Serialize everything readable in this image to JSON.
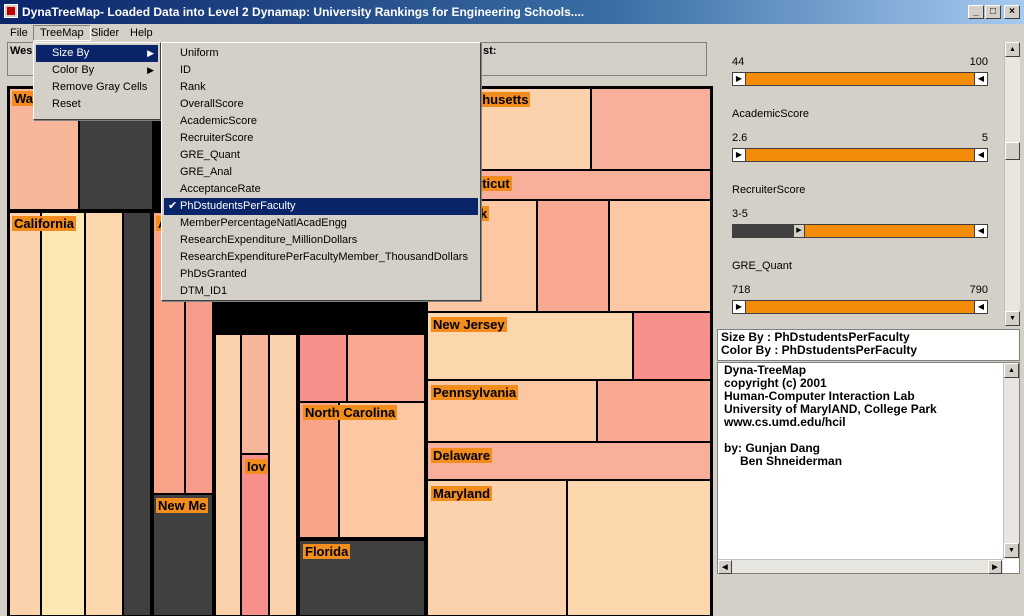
{
  "window": {
    "title": "DynaTreeMap- Loaded Data into Level 2 Dynamap:  University Rankings for Engineering Schools....",
    "minimize": "_",
    "maximize": "□",
    "close": "×"
  },
  "menubar": {
    "file": "File",
    "treemap": "TreeMap",
    "slider": "Slider",
    "help": "Help"
  },
  "treemap_menu": {
    "items": [
      "Size By",
      "Color By",
      "Remove Gray Cells",
      "Reset"
    ]
  },
  "sizeby_menu": {
    "items": [
      "Uniform",
      "ID",
      "Rank",
      "OverallScore",
      "AcademicScore",
      "RecruiterScore",
      "GRE_Quant",
      "GRE_Anal",
      "AcceptanceRate",
      "PhDstudentsPerFaculty",
      "MemberPercentageNatlAcadEngg",
      "ResearchExpenditure_MillionDollars",
      "ResearchExpenditurePerFacultyMember_ThousandDollars",
      "PhDsGranted",
      "DTM_ID1"
    ],
    "checked": "PhDstudentsPerFaculty"
  },
  "infobox": {
    "left_label": "Wes",
    "right_label": "st:"
  },
  "states": {
    "wa": "Wa",
    "california": "California",
    "massachusetts": "chusetts",
    "connecticut": "cticut",
    "newyork": "rk",
    "newjersey": "New Jersey",
    "northcarolina": "North Carolina",
    "pennsylvania": "Pennsylvania",
    "newmexico": "New Me",
    "iowa": "Iov",
    "delaware": "Delaware",
    "florida": "Florida",
    "maryland": "Maryland",
    "a": "A"
  },
  "sliders": [
    {
      "name": "",
      "min": "44",
      "max": "100"
    },
    {
      "name": "AcademicScore",
      "min": "2.6",
      "max": "5"
    },
    {
      "name": "RecruiterScore",
      "min": "3-5",
      "max": ""
    },
    {
      "name": "GRE_Quant",
      "min": "718",
      "max": "790"
    }
  ],
  "sizeinfo": {
    "size_by": "Size By   : PhDstudentsPerFaculty",
    "color_by": "Color By  : PhDstudentsPerFaculty"
  },
  "about": {
    "lines": [
      "Dyna-TreeMap",
      "copyright (c) 2001",
      "Human-Computer Interaction Lab",
      "University of MarylAND, College Park",
      "www.cs.umd.edu/hcil",
      "",
      "by:  Gunjan Dang",
      "     Ben Shneiderman"
    ]
  },
  "colors": {
    "accent": "#f28c0a",
    "title": "#0a246a",
    "label_bg": "#f28c1c"
  }
}
